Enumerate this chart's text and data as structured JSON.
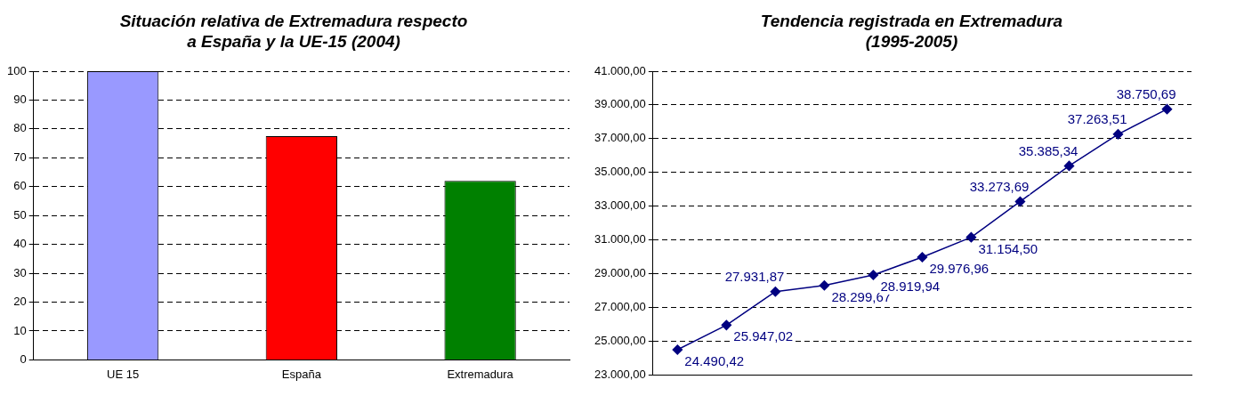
{
  "chart_data": [
    {
      "type": "bar",
      "title": "Situación relativa de Extremadura  respecto\na España y la UE-15 (2004)",
      "categories": [
        "UE 15",
        "España",
        "Extremadura"
      ],
      "values": [
        100,
        77.5,
        62
      ],
      "colors": [
        "#9999ff",
        "#ff0000",
        "#008000"
      ],
      "ylim": [
        0,
        100
      ],
      "yticks": [
        0,
        10,
        20,
        30,
        40,
        50,
        60,
        70,
        80,
        90,
        100
      ],
      "grid": "y",
      "line_style": "dashed"
    },
    {
      "type": "line",
      "title": "Tendencia registrada en Extremadura\n(1995-2005)",
      "categories": [
        null,
        null,
        null,
        null,
        null,
        null,
        null,
        null,
        null,
        null,
        null
      ],
      "series": [
        {
          "color": "#000080",
          "values": [
            24490.42,
            25947.02,
            27931.87,
            28299.67,
            28919.94,
            29976.96,
            31154.5,
            33273.69,
            35385.34,
            37263.51,
            38750.69
          ],
          "value_labels": [
            "24.490,42",
            "25.947,02",
            "27.931,87",
            "28.299,67",
            "28.919,94",
            "29.976,96",
            "31.154,50",
            "33.273,69",
            "35.385,34",
            "37.263,51",
            "38.750,69"
          ]
        }
      ],
      "ylim": [
        23000,
        41000
      ],
      "yticks": [
        {
          "value": 23000,
          "label": "23.000,00"
        },
        {
          "value": 25000,
          "label": "25.000,00"
        },
        {
          "value": 27000,
          "label": "27.000,00"
        },
        {
          "value": 29000,
          "label": "29.000,00"
        },
        {
          "value": 31000,
          "label": "31.000,00"
        },
        {
          "value": 33000,
          "label": "33.000,00"
        },
        {
          "value": 35000,
          "label": "35.000,00"
        },
        {
          "value": 37000,
          "label": "37.000,00"
        },
        {
          "value": 39000,
          "label": "39.000,00"
        },
        {
          "value": 41000,
          "label": "41.000,00"
        }
      ],
      "grid": "y",
      "marker": "diamond",
      "tick_labels": "y"
    }
  ]
}
